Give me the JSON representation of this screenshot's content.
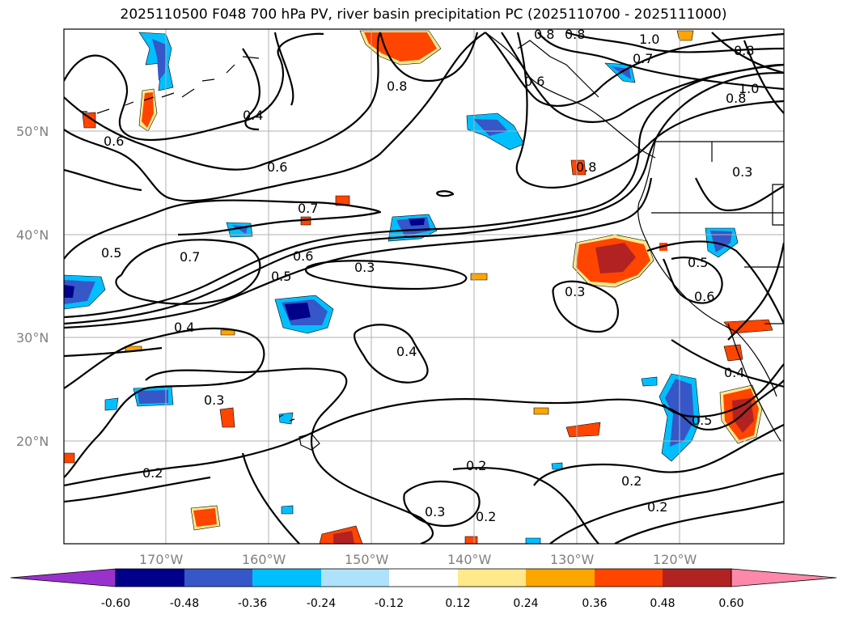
{
  "title": "2025110500 F048 700 hPa PV, river basin precipitation PC (2025110700 - 2025111000)",
  "map": {
    "lat_labels": [
      "50°N",
      "40°N",
      "30°N",
      "20°N"
    ],
    "lon_labels": [
      "170°W",
      "160°W",
      "150°W",
      "140°W",
      "130°W",
      "120°W"
    ],
    "gridline_color": "#b0b0b0",
    "contour_labels": [
      "0.8",
      "0.8",
      "1.0",
      "0.7",
      "0.8",
      "0.8",
      "1.0",
      "0.6",
      "0.8",
      "0.4",
      "0.6",
      "0.6",
      "0.8",
      "0.7",
      "0.7",
      "0.5",
      "0.6",
      "0.5",
      "0.3",
      "0.4",
      "0.3",
      "0.5",
      "0.6",
      "0.4",
      "0.3",
      "0.4",
      "0.5",
      "0.2",
      "0.2",
      "0.3",
      "0.2",
      "0.2",
      "0.2",
      "0.3"
    ]
  },
  "colorbar": {
    "ticks": [
      "-0.60",
      "-0.48",
      "-0.36",
      "-0.24",
      "-0.12",
      "0.12",
      "0.24",
      "0.36",
      "0.48",
      "0.60"
    ],
    "colors": [
      "#9932cc",
      "#00008b",
      "#3557c8",
      "#00bfff",
      "#ade2fa",
      "#ffffff",
      "#ffe98a",
      "#ffa500",
      "#ff4500",
      "#b22222",
      "#ff88aa"
    ]
  }
}
